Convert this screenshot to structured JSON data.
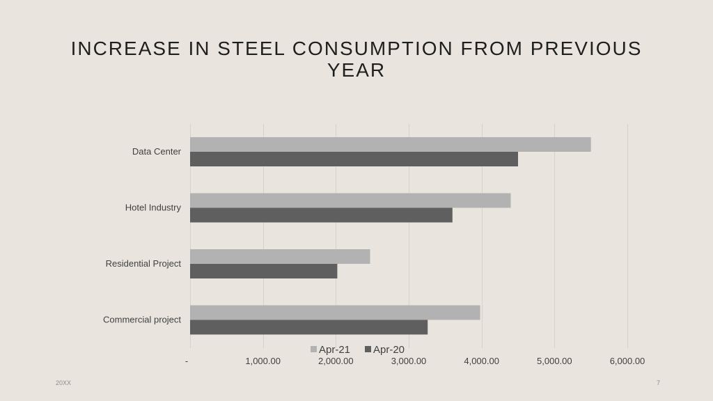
{
  "slide": {
    "title": "INCREASE IN STEEL CONSUMPTION FROM PREVIOUS YEAR",
    "footer_left": "20XX",
    "page_number": "7"
  },
  "chart_data": {
    "type": "bar",
    "orientation": "horizontal",
    "title": "",
    "xlabel": "",
    "ylabel": "",
    "categories": [
      "Data Center",
      "Hotel Industry",
      "Residential Project",
      "Commercial project"
    ],
    "series": [
      {
        "name": "Apr-21",
        "color": "#b2b2b2",
        "values": [
          5500,
          4400,
          2470,
          3980
        ]
      },
      {
        "name": "Apr-20",
        "color": "#5f5f5f",
        "values": [
          4500,
          3600,
          2020,
          3260
        ]
      }
    ],
    "xlim": [
      0,
      6000
    ],
    "x_ticks": [
      0,
      1000,
      2000,
      3000,
      4000,
      5000,
      6000
    ],
    "x_tick_labels": [
      "-",
      "1,000.00",
      "2,000.00",
      "3,000.00",
      "4,000.00",
      "5,000.00",
      "6,000.00"
    ],
    "grid": "vertical",
    "gridline_color": "#d6d2cb",
    "legend_position": "bottom"
  }
}
